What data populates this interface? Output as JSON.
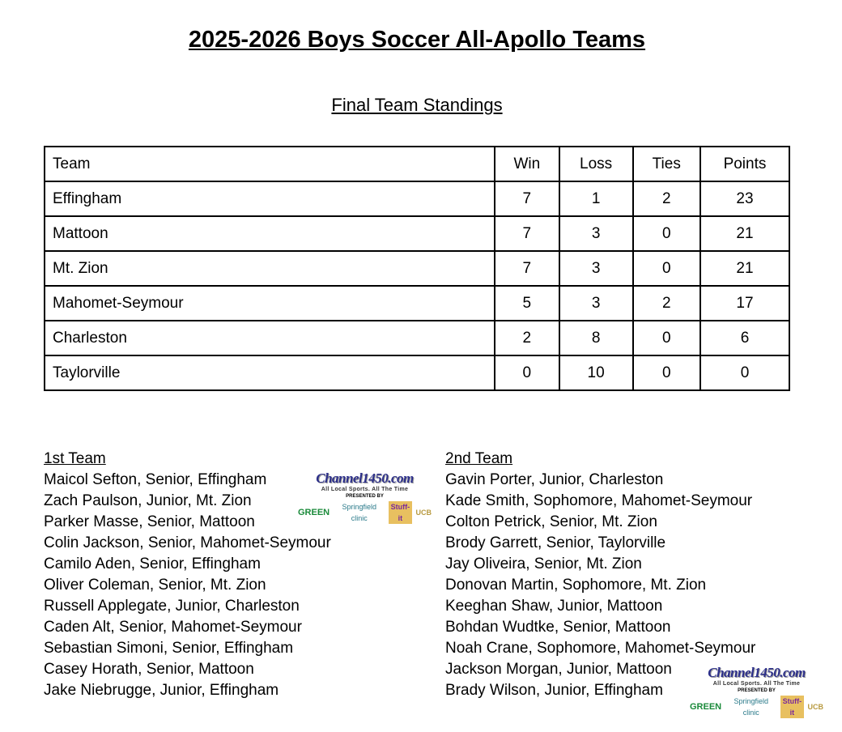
{
  "title": "2025-2026 Boys Soccer All-Apollo Teams",
  "standings": {
    "heading": "Final Team Standings",
    "columns": [
      "Team",
      "Win",
      "Loss",
      "Ties",
      "Points"
    ],
    "rows": [
      [
        "Effingham",
        "7",
        "1",
        "2",
        "23"
      ],
      [
        "Mattoon",
        "7",
        "3",
        "0",
        "21"
      ],
      [
        "Mt. Zion",
        "7",
        "3",
        "0",
        "21"
      ],
      [
        "Mahomet-Seymour",
        "5",
        "3",
        "2",
        "17"
      ],
      [
        "Charleston",
        "2",
        "8",
        "0",
        "6"
      ],
      [
        "Taylorville",
        "0",
        "10",
        "0",
        "0"
      ]
    ]
  },
  "first_team": {
    "heading": "1st Team",
    "players": [
      "Maicol Sefton, Senior, Effingham",
      "Zach Paulson, Junior, Mt. Zion",
      "Parker Masse, Senior, Mattoon",
      "Colin Jackson, Senior, Mahomet-Seymour",
      "Camilo Aden, Senior, Effingham",
      "Oliver Coleman, Senior, Mt. Zion",
      "Russell Applegate, Junior, Charleston",
      "Caden Alt, Senior, Mahomet-Seymour",
      "Sebastian Simoni, Senior, Effingham",
      "Casey Horath, Senior, Mattoon",
      "Jake Niebrugge, Junior, Effingham"
    ]
  },
  "second_team": {
    "heading": "2nd Team",
    "players": [
      "Gavin Porter, Junior, Charleston",
      "Kade Smith, Sophomore, Mahomet-Seymour",
      "Colton Petrick, Senior, Mt. Zion",
      "Brody Garrett, Senior, Taylorville",
      "Jay Oliveira, Senior, Mt. Zion",
      "Donovan Martin, Sophomore, Mt. Zion",
      "Keeghan Shaw, Junior, Mattoon",
      "Bohdan Wudtke, Senior, Mattoon",
      "Noah Crane, Sophomore, Mahomet-Seymour",
      "Jackson Morgan, Junior, Mattoon",
      "Brady Wilson, Junior, Effingham"
    ]
  },
  "logo": {
    "name": "Channel1450.com",
    "tagline": "All Local Sports. All The Time",
    "presented_by": "PRESENTED BY",
    "sponsors": [
      "GREEN",
      "Springfield clinic",
      "Stuff-it",
      "UCB"
    ]
  }
}
